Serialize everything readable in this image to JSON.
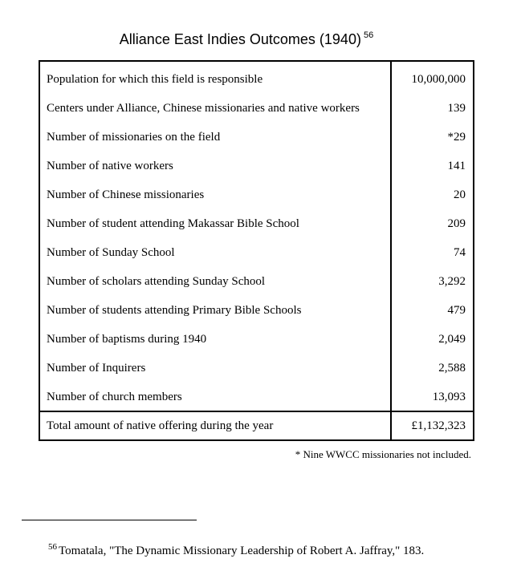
{
  "title": {
    "text": "Alliance East Indies Outcomes (1940)",
    "footnote_ref": "56"
  },
  "rows": [
    {
      "label": "Population for which this field is responsible",
      "value": "10,000,000"
    },
    {
      "label": "Centers under Alliance, Chinese missionaries and native workers",
      "value": "139"
    },
    {
      "label": "Number of missionaries on the field",
      "value": "*29"
    },
    {
      "label": "Number of native workers",
      "value": "141"
    },
    {
      "label": "Number of Chinese missionaries",
      "value": "20"
    },
    {
      "label": "Number of student attending Makassar Bible School",
      "value": "209"
    },
    {
      "label": "Number of Sunday School",
      "value": "74"
    },
    {
      "label": "Number of scholars attending Sunday School",
      "value": "3,292"
    },
    {
      "label": "Number of students attending Primary Bible Schools",
      "value": "479"
    },
    {
      "label": "Number of baptisms during 1940",
      "value": "2,049"
    },
    {
      "label": "Number of Inquirers",
      "value": "2,588"
    },
    {
      "label": "Number of church members",
      "value": "13,093"
    }
  ],
  "total": {
    "label": "Total amount of native offering during the year",
    "value": "£1,132,323"
  },
  "note": "* Nine WWCC missionaries not included.",
  "footnote": {
    "number": "56",
    "text": "Tomatala, \"The Dynamic Missionary Leadership of Robert A. Jaffray,\" 183."
  }
}
